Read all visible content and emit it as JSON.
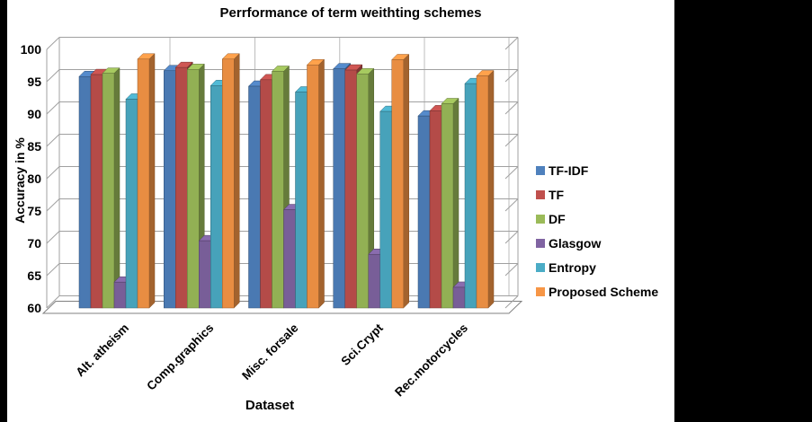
{
  "page": {
    "background_color": "#ffffff",
    "side_border_color": "#000000"
  },
  "chart_data": {
    "type": "bar",
    "style": "3d-clustered-column",
    "title": "Perrformance of term weithting schemes",
    "xlabel": "Dataset",
    "ylabel": "Accuracy in %",
    "ylim": [
      60,
      100
    ],
    "ytick_step": 5,
    "grid": true,
    "legend_position": "right",
    "categories": [
      "Alt. atheism",
      "Comp.graphics",
      "Misc. forsale",
      "Sci.Crypt",
      "Rec.motorcycles"
    ],
    "series": [
      {
        "name": "TF-IDF",
        "color": "#4f81bd",
        "values": [
          95.8,
          96.7,
          94.3,
          97.0,
          89.7
        ]
      },
      {
        "name": "TF",
        "color": "#c0504d",
        "values": [
          96.1,
          97.2,
          95.3,
          96.8,
          90.5
        ]
      },
      {
        "name": "DF",
        "color": "#9bbb59",
        "values": [
          96.3,
          96.9,
          96.6,
          96.2,
          91.6
        ]
      },
      {
        "name": "Glasgow",
        "color": "#8064a2",
        "values": [
          64.0,
          70.4,
          75.2,
          68.3,
          63.2
        ]
      },
      {
        "name": "Entropy",
        "color": "#4bacc6",
        "values": [
          92.3,
          94.4,
          93.4,
          90.4,
          94.7
        ]
      },
      {
        "name": "Proposed Scheme",
        "color": "#f79646",
        "values": [
          98.5,
          98.5,
          97.6,
          98.4,
          95.9
        ]
      }
    ],
    "grid_color": "#a0a0a0"
  }
}
